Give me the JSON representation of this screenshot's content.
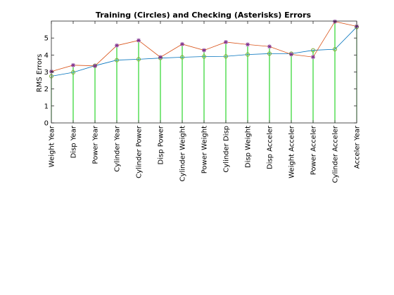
{
  "chart_data": {
    "type": "line",
    "title": "Training (Circles) and Checking (Asterisks) Errors",
    "xlabel": "",
    "ylabel": "RMS Errors",
    "ylim": [
      0,
      6
    ],
    "yticks": [
      0,
      1,
      2,
      3,
      4,
      5
    ],
    "grid": false,
    "legend": "none",
    "categories": [
      "Weight Year",
      "Disp Year",
      "Power Year",
      "Cylinder Year",
      "Cylinder Power",
      "Disp Power",
      "Cylinder Weight",
      "Power Weight",
      "Cylinder Disp",
      "Disp Weight",
      "Disp Acceler",
      "Weight Acceler",
      "Power Acceler",
      "Cylinder Acceler",
      "Acceler Year"
    ],
    "series": [
      {
        "marker": "circle",
        "color": "#0072bd",
        "marker_color": "#77ac30",
        "values": [
          2.75,
          2.98,
          3.37,
          3.7,
          3.75,
          3.82,
          3.87,
          3.91,
          3.92,
          4.03,
          4.08,
          4.08,
          4.28,
          4.34,
          5.65
        ]
      },
      {
        "marker": "asterisk",
        "color": "#d95319",
        "marker_color": "#7e2f8e",
        "values": [
          3.03,
          3.4,
          3.36,
          4.56,
          4.86,
          3.87,
          4.64,
          4.28,
          4.76,
          4.62,
          4.5,
          4.04,
          3.88,
          5.97,
          5.69
        ]
      }
    ],
    "stem_color": "#00cc00"
  }
}
